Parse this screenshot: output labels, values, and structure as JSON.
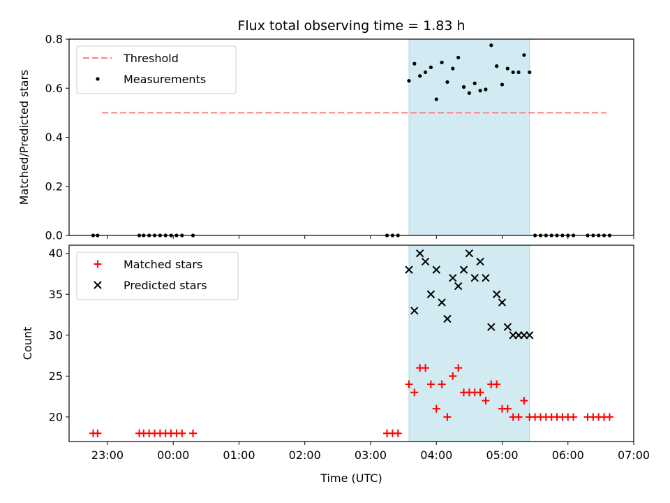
{
  "chart_data": [
    {
      "type": "scatter",
      "title": "Flux total observing time = 1.83 h",
      "xlabel": "",
      "ylabel": "Matched/Predicted stars",
      "ylim": [
        0,
        0.8
      ],
      "yticks": [
        "0.0",
        "0.2",
        "0.4",
        "0.6",
        "0.8"
      ],
      "highlight_span": {
        "start": "03:35",
        "end": "05:25",
        "color": "#add8e6"
      },
      "legend_position": "upper-left",
      "threshold": {
        "name": "Threshold",
        "value": 0.5,
        "x_start": "22:55",
        "x_end": "06:35",
        "color": "#ff7f7f"
      },
      "series": [
        {
          "name": "Measurements",
          "marker": "dot",
          "color": "#000000",
          "points": [
            [
              "22:47",
              0
            ],
            [
              "22:51",
              0
            ],
            [
              "23:29",
              0
            ],
            [
              "23:33",
              0
            ],
            [
              "23:38",
              0
            ],
            [
              "23:43",
              0
            ],
            [
              "23:48",
              0
            ],
            [
              "23:53",
              0
            ],
            [
              "23:58",
              0
            ],
            [
              "00:03",
              0
            ],
            [
              "00:08",
              0
            ],
            [
              "00:18",
              0
            ],
            [
              "03:15",
              0
            ],
            [
              "03:20",
              0
            ],
            [
              "03:25",
              0
            ],
            [
              "03:35",
              0.63
            ],
            [
              "03:40",
              0.7
            ],
            [
              "03:45",
              0.65
            ],
            [
              "03:50",
              0.665
            ],
            [
              "03:55",
              0.685
            ],
            [
              "04:00",
              0.555
            ],
            [
              "04:05",
              0.705
            ],
            [
              "04:10",
              0.625
            ],
            [
              "04:15",
              0.68
            ],
            [
              "04:20",
              0.725
            ],
            [
              "04:25",
              0.605
            ],
            [
              "04:30",
              0.58
            ],
            [
              "04:35",
              0.62
            ],
            [
              "04:40",
              0.59
            ],
            [
              "04:45",
              0.595
            ],
            [
              "04:50",
              0.775
            ],
            [
              "04:55",
              0.69
            ],
            [
              "05:00",
              0.615
            ],
            [
              "05:05",
              0.68
            ],
            [
              "05:10",
              0.665
            ],
            [
              "05:15",
              0.665
            ],
            [
              "05:20",
              0.735
            ],
            [
              "05:25",
              0.665
            ],
            [
              "05:30",
              0
            ],
            [
              "05:35",
              0
            ],
            [
              "05:40",
              0
            ],
            [
              "05:45",
              0
            ],
            [
              "05:50",
              0
            ],
            [
              "05:55",
              0
            ],
            [
              "06:00",
              0
            ],
            [
              "06:05",
              0
            ],
            [
              "06:18",
              0
            ],
            [
              "06:23",
              0
            ],
            [
              "06:28",
              0
            ],
            [
              "06:33",
              0
            ],
            [
              "06:38",
              0
            ]
          ]
        }
      ]
    },
    {
      "type": "scatter",
      "title": "",
      "xlabel": "Time (UTC)",
      "ylabel": "Count",
      "ylim": [
        17,
        41
      ],
      "yticks": [
        "20",
        "25",
        "30",
        "35",
        "40"
      ],
      "xlim": [
        "22:25",
        "07:00"
      ],
      "xticks": [
        "23:00",
        "00:00",
        "01:00",
        "02:00",
        "03:00",
        "04:00",
        "05:00",
        "06:00",
        "07:00"
      ],
      "highlight_span": {
        "start": "03:35",
        "end": "05:25",
        "color": "#add8e6"
      },
      "legend_position": "upper-left",
      "series": [
        {
          "name": "Matched stars",
          "marker": "plus",
          "color": "#ff0000",
          "points": [
            [
              "22:47",
              18
            ],
            [
              "22:51",
              18
            ],
            [
              "23:29",
              18
            ],
            [
              "23:33",
              18
            ],
            [
              "23:38",
              18
            ],
            [
              "23:43",
              18
            ],
            [
              "23:48",
              18
            ],
            [
              "23:53",
              18
            ],
            [
              "23:58",
              18
            ],
            [
              "00:03",
              18
            ],
            [
              "00:08",
              18
            ],
            [
              "00:18",
              18
            ],
            [
              "03:15",
              18
            ],
            [
              "03:20",
              18
            ],
            [
              "03:25",
              18
            ],
            [
              "03:35",
              24
            ],
            [
              "03:40",
              23
            ],
            [
              "03:45",
              26
            ],
            [
              "03:50",
              26
            ],
            [
              "03:55",
              24
            ],
            [
              "04:00",
              21
            ],
            [
              "04:05",
              24
            ],
            [
              "04:10",
              20
            ],
            [
              "04:15",
              25
            ],
            [
              "04:20",
              26
            ],
            [
              "04:25",
              23
            ],
            [
              "04:30",
              23
            ],
            [
              "04:35",
              23
            ],
            [
              "04:40",
              23
            ],
            [
              "04:45",
              22
            ],
            [
              "04:50",
              24
            ],
            [
              "04:55",
              24
            ],
            [
              "05:00",
              21
            ],
            [
              "05:05",
              21
            ],
            [
              "05:10",
              20
            ],
            [
              "05:15",
              20
            ],
            [
              "05:20",
              22
            ],
            [
              "05:25",
              20
            ],
            [
              "05:30",
              20
            ],
            [
              "05:35",
              20
            ],
            [
              "05:40",
              20
            ],
            [
              "05:45",
              20
            ],
            [
              "05:50",
              20
            ],
            [
              "05:55",
              20
            ],
            [
              "06:00",
              20
            ],
            [
              "06:05",
              20
            ],
            [
              "06:18",
              20
            ],
            [
              "06:23",
              20
            ],
            [
              "06:28",
              20
            ],
            [
              "06:33",
              20
            ],
            [
              "06:38",
              20
            ]
          ]
        },
        {
          "name": "Predicted stars",
          "marker": "x",
          "color": "#000000",
          "points": [
            [
              "03:35",
              38
            ],
            [
              "03:40",
              33
            ],
            [
              "03:45",
              40
            ],
            [
              "03:50",
              39
            ],
            [
              "03:55",
              35
            ],
            [
              "04:00",
              38
            ],
            [
              "04:05",
              34
            ],
            [
              "04:10",
              32
            ],
            [
              "04:15",
              37
            ],
            [
              "04:20",
              36
            ],
            [
              "04:25",
              38
            ],
            [
              "04:30",
              40
            ],
            [
              "04:35",
              37
            ],
            [
              "04:40",
              39
            ],
            [
              "04:45",
              37
            ],
            [
              "04:50",
              31
            ],
            [
              "04:55",
              35
            ],
            [
              "05:00",
              34
            ],
            [
              "05:05",
              31
            ],
            [
              "05:10",
              30
            ],
            [
              "05:15",
              30
            ],
            [
              "05:20",
              30
            ],
            [
              "05:25",
              30
            ]
          ]
        }
      ]
    }
  ]
}
